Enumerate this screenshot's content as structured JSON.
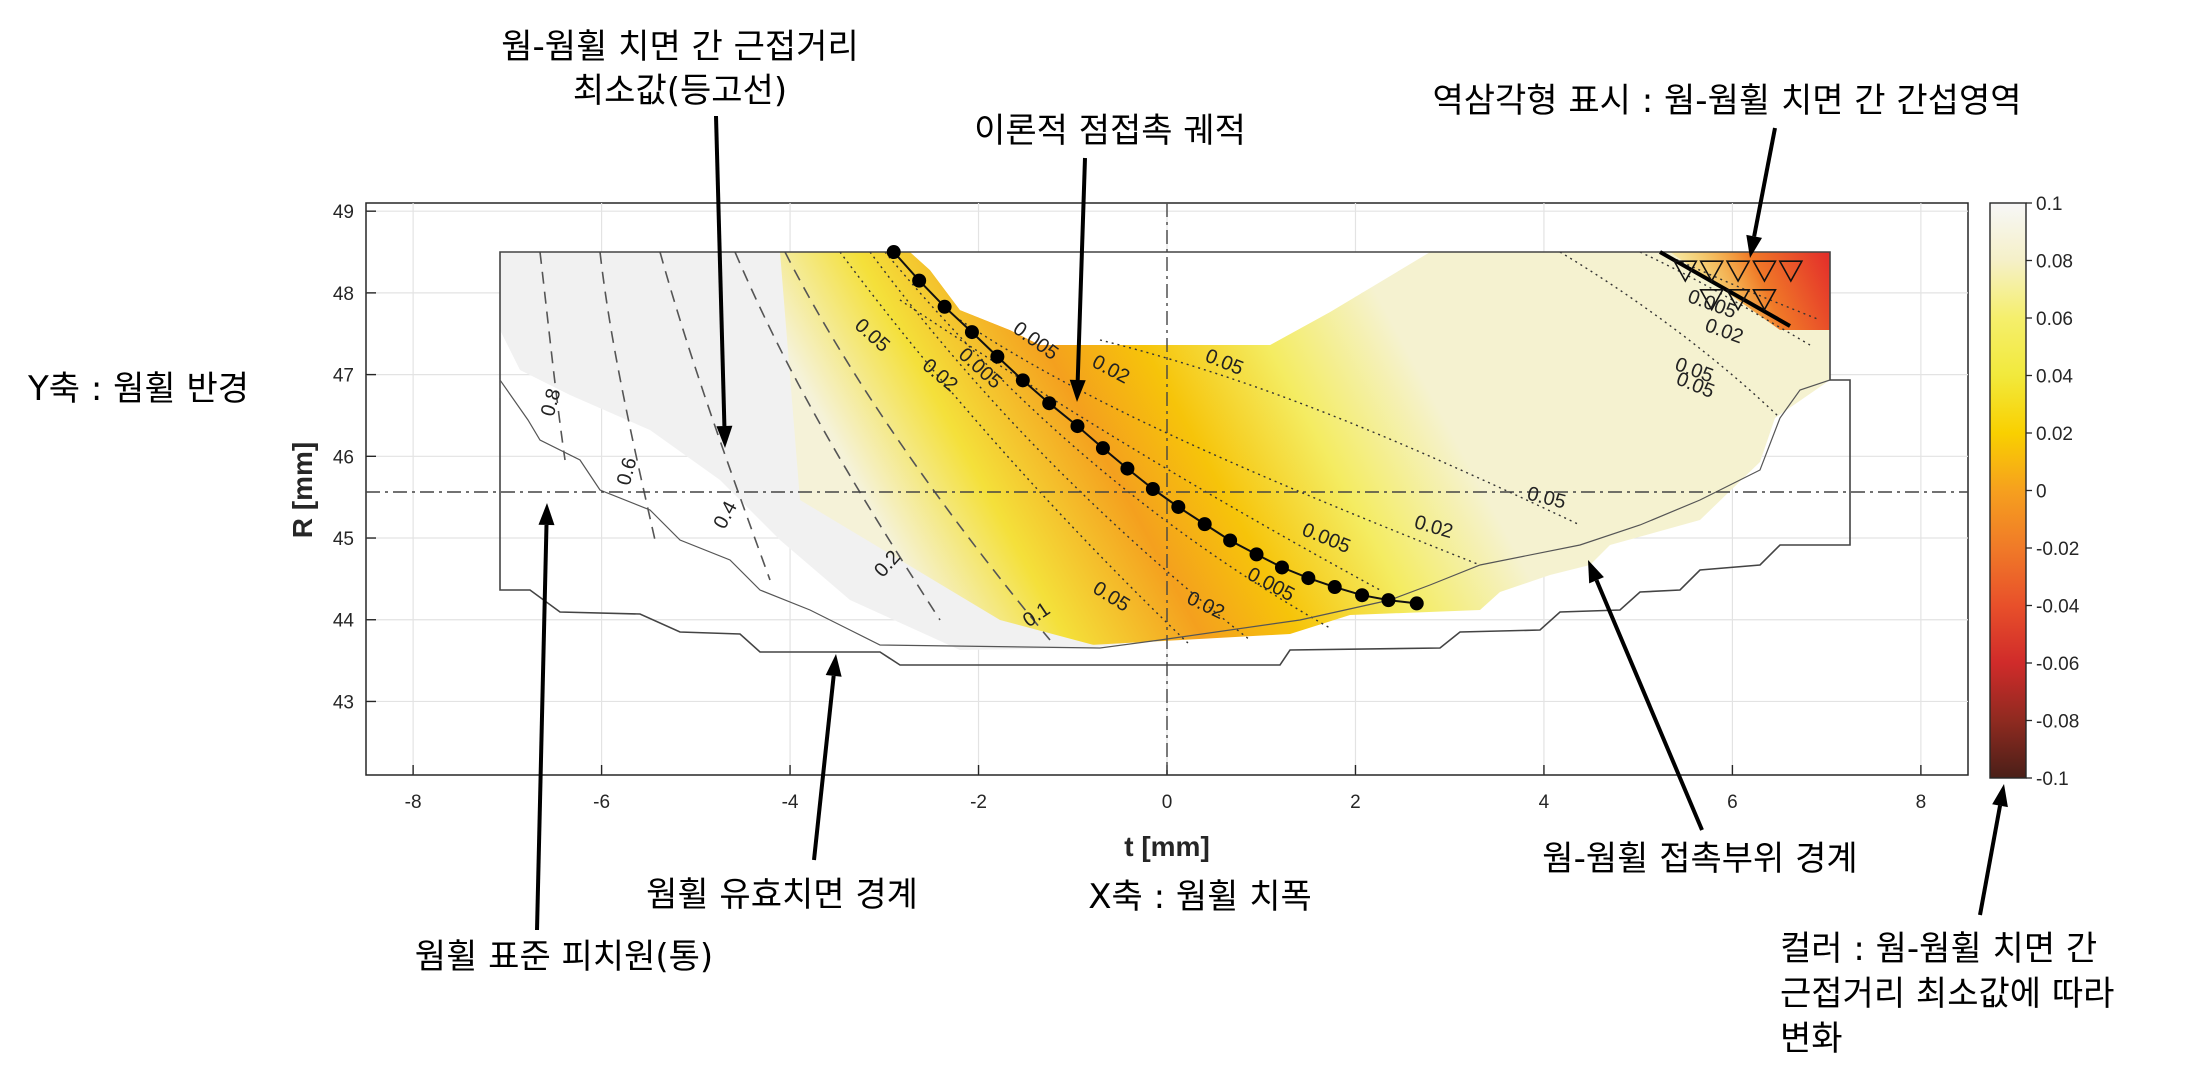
{
  "chart_data": {
    "type": "contour",
    "xlabel": "t [mm]",
    "ylabel": "R [mm]",
    "xlim": [
      -8.5,
      8.5
    ],
    "ylim": [
      42.1,
      49.1
    ],
    "x_ticks": [
      "-8",
      "-6",
      "-4",
      "-2",
      "0",
      "2",
      "4",
      "6",
      "8"
    ],
    "y_ticks": [
      "43",
      "44",
      "45",
      "46",
      "47",
      "48",
      "49"
    ],
    "grid": true,
    "reference_lines": {
      "x": 0,
      "y": 45.55
    },
    "colorbar": {
      "min": -0.1,
      "max": 0.1,
      "ticks": [
        "0.1",
        "0.08",
        "0.06",
        "0.04",
        "0.02",
        "0",
        "-0.02",
        "-0.04",
        "-0.06",
        "-0.08",
        "-0.1"
      ],
      "colors": [
        "#f7f7f7",
        "#f5f0c8",
        "#f5ef6c",
        "#f2e93c",
        "#f9d000",
        "#f6a01e",
        "#f07a28",
        "#e8502a",
        "#d02b2a",
        "#8f2a20",
        "#4a1f18"
      ]
    },
    "contour_labels": {
      "dashed": [
        "0.8",
        "0.6",
        "0.4",
        "0.2",
        "0.1"
      ],
      "dotted": [
        "0.05",
        "0.02",
        "0.005",
        "0.005",
        "0.02",
        "0.05",
        "0.05",
        "0.02",
        "0.005",
        "0.005",
        "0.02",
        "0.05",
        "0.05",
        "0.02",
        "0.005",
        "0.05"
      ]
    },
    "contact_trajectory": {
      "x": [
        -2.9,
        -2.63,
        -2.36,
        -2.07,
        -1.8,
        -1.53,
        -1.25,
        -0.95,
        -0.68,
        -0.42,
        -0.15,
        0.12,
        0.4,
        0.67,
        0.95,
        1.22,
        1.5,
        1.78,
        2.07,
        2.35,
        2.65
      ],
      "y": [
        48.5,
        48.15,
        47.83,
        47.52,
        47.22,
        46.93,
        46.65,
        46.37,
        46.1,
        45.85,
        45.6,
        45.38,
        45.17,
        44.97,
        44.8,
        44.64,
        44.51,
        44.4,
        44.3,
        44.24,
        44.2
      ]
    },
    "interference_markers": {
      "x": [
        5.5,
        5.78,
        6.06,
        6.34,
        6.62,
        5.78,
        6.06,
        6.34
      ],
      "y": [
        48.28,
        48.28,
        48.28,
        48.28,
        48.28,
        47.93,
        47.93,
        47.93
      ]
    }
  },
  "annotations": {
    "contour_title_line1": "웜-웜휠 치면 간 근접거리",
    "contour_title_line2": "최소값(등고선)",
    "trajectory": "이론적 점접촉 궤적",
    "interference": "역삼각형 표시 : 웜-웜휠 치면 간 간섭영역",
    "y_axis": "Y축 : 웜휠 반경",
    "effective_boundary": "웜휠 유효치면 경계",
    "x_axis": "X축 : 웜휠 치폭",
    "contact_boundary": "웜-웜휠 접촉부위 경계",
    "pitch_circle": "웜휠 표준 피치원(통)",
    "color_line1": "컬러 : 웜-웜휠 치면 간",
    "color_line2": "근접거리 최소값에 따라",
    "color_line3": "변화"
  }
}
